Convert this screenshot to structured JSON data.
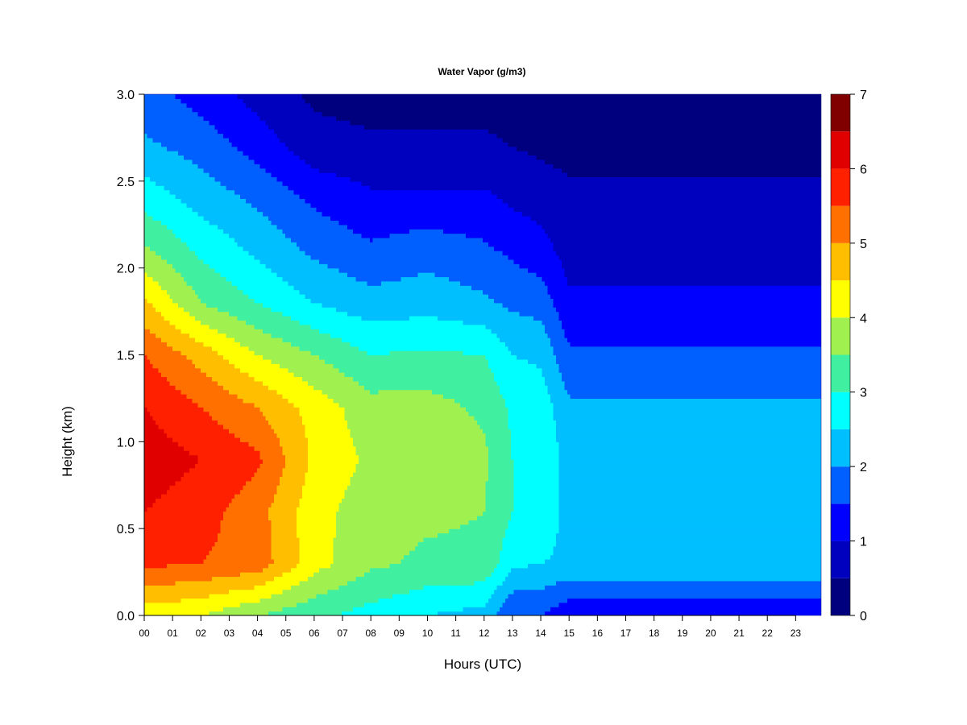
{
  "chart_data": {
    "type": "heatmap",
    "title": "Water Vapor (g/m3)",
    "xlabel": "Hours (UTC)",
    "ylabel": "Height (km)",
    "xlim": [
      0,
      23.9
    ],
    "ylim": [
      0,
      3.0
    ],
    "x_ticks": [
      "00",
      "01",
      "02",
      "03",
      "04",
      "05",
      "06",
      "07",
      "08",
      "09",
      "10",
      "11",
      "12",
      "13",
      "14",
      "15",
      "16",
      "17",
      "18",
      "19",
      "20",
      "21",
      "22",
      "23"
    ],
    "y_ticks": [
      "0.0",
      "0.5",
      "1.0",
      "1.5",
      "2.0",
      "2.5",
      "3.0"
    ],
    "colorbar": {
      "levels": [
        0,
        0.5,
        1,
        1.5,
        2,
        2.5,
        3,
        3.5,
        4,
        4.5,
        5,
        5.5,
        6,
        6.5,
        7
      ],
      "colors": [
        "#00007f",
        "#0000bf",
        "#0000ff",
        "#0060ff",
        "#00bfff",
        "#00ffff",
        "#40f0a0",
        "#a0f050",
        "#ffff00",
        "#ffbf00",
        "#ff7000",
        "#ff2000",
        "#e00000",
        "#800000"
      ],
      "tick_labels": [
        "0",
        "1",
        "2",
        "3",
        "4",
        "5",
        "6",
        "7"
      ]
    },
    "heights_km": [
      0.0,
      0.3,
      0.6,
      0.9,
      1.2,
      1.5,
      1.8,
      2.1,
      2.4,
      2.7,
      3.0
    ],
    "hours": [
      0,
      2,
      4,
      6,
      8,
      10,
      12,
      13,
      14,
      15,
      18,
      21,
      24
    ],
    "values": [
      [
        4.2,
        4.0,
        3.5,
        3.1,
        2.8,
        2.5,
        2.3,
        1.5,
        1.5,
        1.1,
        1.1,
        1.1,
        1.1
      ],
      [
        5.6,
        5.5,
        5.3,
        4.2,
        3.6,
        3.4,
        3.4,
        2.6,
        2.5,
        2.4,
        2.4,
        2.4,
        2.4
      ],
      [
        6.0,
        5.7,
        5.2,
        4.2,
        3.7,
        3.6,
        3.5,
        3.0,
        2.9,
        2.3,
        2.2,
        2.2,
        2.2
      ],
      [
        6.3,
        6.0,
        5.6,
        4.4,
        3.9,
        3.9,
        3.6,
        3.0,
        2.9,
        2.3,
        2.2,
        2.1,
        2.1
      ],
      [
        6.0,
        5.5,
        5.0,
        4.3,
        3.7,
        3.7,
        3.4,
        2.9,
        2.8,
        2.1,
        2.1,
        2.1,
        2.1
      ],
      [
        5.5,
        4.8,
        4.0,
        3.5,
        3.0,
        3.1,
        3.0,
        2.5,
        2.4,
        1.6,
        1.6,
        1.6,
        1.6
      ],
      [
        4.6,
        3.5,
        3.0,
        2.5,
        2.2,
        2.3,
        2.1,
        1.9,
        1.8,
        1.1,
        1.1,
        1.1,
        1.1
      ],
      [
        3.6,
        2.9,
        2.4,
        1.9,
        1.6,
        1.8,
        1.6,
        1.4,
        1.2,
        0.8,
        0.8,
        0.8,
        0.8
      ],
      [
        2.8,
        2.3,
        1.9,
        1.4,
        1.1,
        1.1,
        1.1,
        0.9,
        0.8,
        0.6,
        0.6,
        0.6,
        0.6
      ],
      [
        2.1,
        1.8,
        1.3,
        0.7,
        0.6,
        0.6,
        0.6,
        0.5,
        0.4,
        0.35,
        0.35,
        0.35,
        0.35
      ],
      [
        1.7,
        1.3,
        0.8,
        0.4,
        0.3,
        0.3,
        0.3,
        0.25,
        0.2,
        0.2,
        0.2,
        0.2,
        0.2
      ]
    ]
  }
}
